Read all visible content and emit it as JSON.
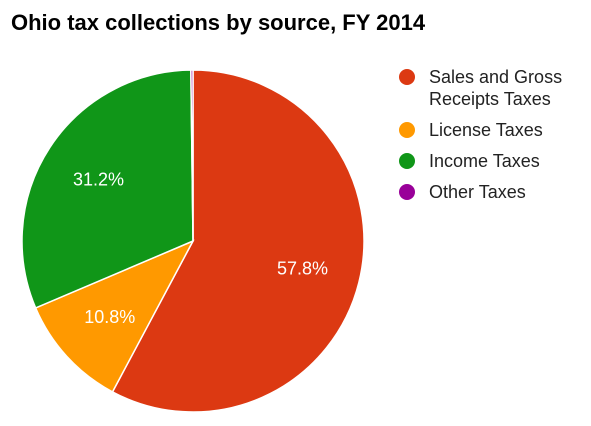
{
  "chart_data": {
    "type": "pie",
    "title": "Ohio tax collections by source, FY 2014",
    "slices": [
      {
        "label": "Sales and Gross Receipts Taxes",
        "value": 57.8,
        "display": "57.8%",
        "color": "#dc3912"
      },
      {
        "label": "License Taxes",
        "value": 10.8,
        "display": "10.8%",
        "color": "#ff9900"
      },
      {
        "label": "Income Taxes",
        "value": 31.2,
        "display": "31.2%",
        "color": "#109618"
      },
      {
        "label": "Other Taxes",
        "value": 0.2,
        "display": "",
        "color": "#990099"
      }
    ],
    "legend_position": "right"
  }
}
